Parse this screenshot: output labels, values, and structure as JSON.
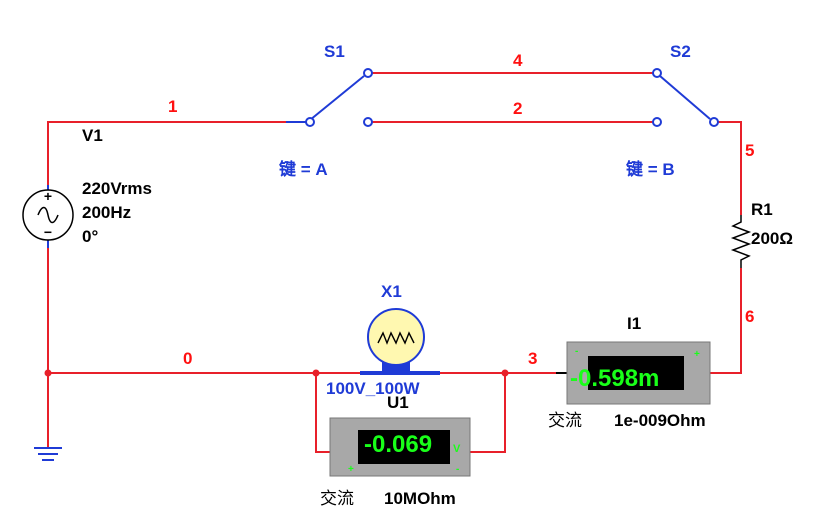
{
  "source": {
    "name": "V1",
    "voltage": "220Vrms",
    "frequency": "200Hz",
    "phase": "0°"
  },
  "switches": [
    {
      "name": "S1",
      "key": "键 = A"
    },
    {
      "name": "S2",
      "key": "键 = B"
    }
  ],
  "nodes": [
    "1",
    "4",
    "2",
    "5",
    "6",
    "0",
    "3"
  ],
  "resistor": {
    "name": "R1",
    "value": "200Ω"
  },
  "lamp": {
    "name": "X1",
    "rating": "100V_100W"
  },
  "ammeter": {
    "name": "I1",
    "reading": "-0.598m",
    "mode": "交流",
    "resistance": "1e-009Ohm"
  },
  "voltmeter": {
    "name": "U1",
    "reading": "-0.069",
    "unit": "V",
    "mode": "交流",
    "resistance": "10MOhm"
  },
  "colors": {
    "wire": "#e8202a",
    "component": "#1f3bd6",
    "label": "#000000",
    "node_label": "#ff1010",
    "meter_body": "#a8a8a8",
    "meter_display_bg": "#000000",
    "meter_display_text": "#19ff19"
  }
}
